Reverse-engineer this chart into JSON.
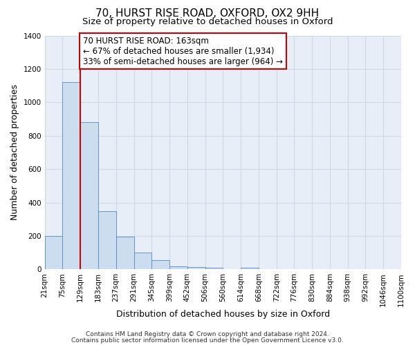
{
  "title1": "70, HURST RISE ROAD, OXFORD, OX2 9HH",
  "title2": "Size of property relative to detached houses in Oxford",
  "xlabel": "Distribution of detached houses by size in Oxford",
  "ylabel": "Number of detached properties",
  "bar_values": [
    200,
    1120,
    880,
    350,
    195,
    100,
    55,
    20,
    15,
    10,
    0,
    10,
    0,
    0,
    0,
    0,
    0,
    0,
    0,
    0
  ],
  "bin_labels": [
    "21sqm",
    "75sqm",
    "129sqm",
    "183sqm",
    "237sqm",
    "291sqm",
    "345sqm",
    "399sqm",
    "452sqm",
    "506sqm",
    "560sqm",
    "614sqm",
    "668sqm",
    "722sqm",
    "776sqm",
    "830sqm",
    "884sqm",
    "938sqm",
    "992sqm",
    "1046sqm",
    "1100sqm"
  ],
  "bar_color": "#ccddf0",
  "bar_edge_color": "#5588bb",
  "fig_bg_color": "#ffffff",
  "ax_bg_color": "#e8eef8",
  "grid_color": "#d0d8e8",
  "vline_x": 2.0,
  "vline_color": "#cc0000",
  "annotation_line1": "70 HURST RISE ROAD: 163sqm",
  "annotation_line2": "← 67% of detached houses are smaller (1,934)",
  "annotation_line3": "33% of semi-detached houses are larger (964) →",
  "annotation_box_edgecolor": "#cc0000",
  "annotation_box_facecolor": "#ffffff",
  "ylim": [
    0,
    1400
  ],
  "yticks": [
    0,
    200,
    400,
    600,
    800,
    1000,
    1200,
    1400
  ],
  "footer1": "Contains HM Land Registry data © Crown copyright and database right 2024.",
  "footer2": "Contains public sector information licensed under the Open Government Licence v3.0.",
  "title_fontsize": 11,
  "subtitle_fontsize": 9.5,
  "axis_label_fontsize": 9,
  "tick_fontsize": 7.5,
  "annotation_fontsize": 8.5,
  "footer_fontsize": 6.5
}
